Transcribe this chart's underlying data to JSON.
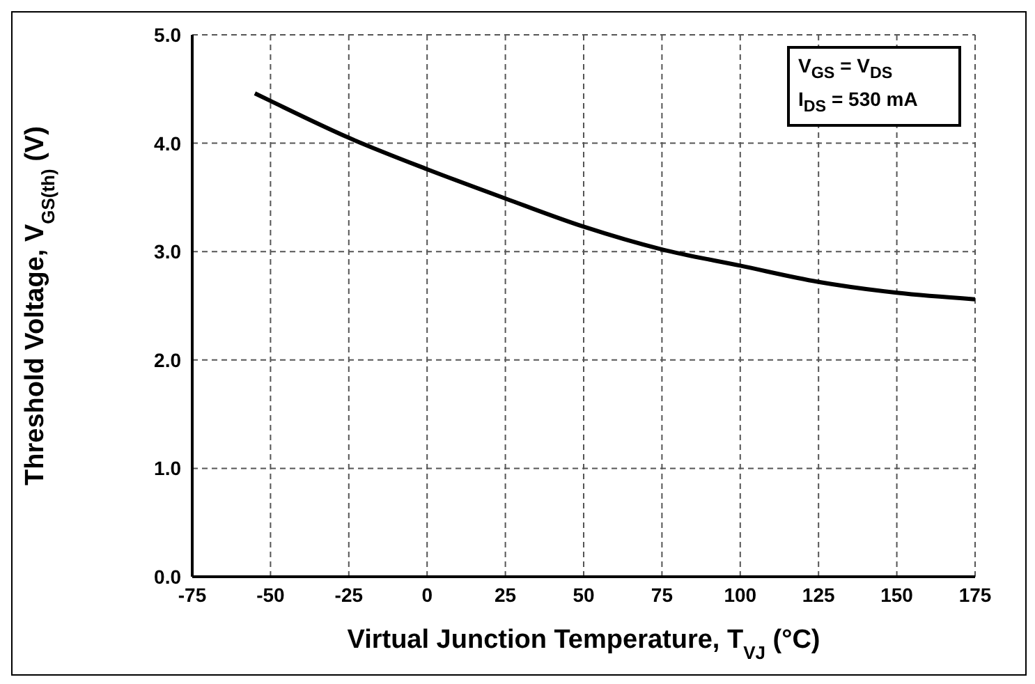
{
  "chart_data": {
    "type": "line",
    "xlabel": "Virtual Junction Temperature, T$_{VJ}$ (°C)",
    "ylabel": "Threshold Voltage, V$_{GS(th)}$ (V)",
    "x": [
      -55,
      -50,
      -25,
      0,
      25,
      50,
      75,
      100,
      125,
      150,
      175
    ],
    "series": [
      {
        "color": "#000000",
        "values": [
          4.46,
          4.39,
          4.05,
          3.76,
          3.49,
          3.23,
          3.02,
          2.87,
          2.72,
          2.62,
          2.56
        ]
      }
    ],
    "xlim": [
      -75,
      175
    ],
    "xticks": [
      -75,
      -50,
      -25,
      0,
      25,
      50,
      75,
      100,
      125,
      150,
      175
    ],
    "ylim": [
      0,
      5
    ],
    "yticks": [
      {
        "value": 0,
        "label": "0.0"
      },
      {
        "value": 1,
        "label": "1.0"
      },
      {
        "value": 2,
        "label": "2.0"
      },
      {
        "value": 3,
        "label": "3.0"
      },
      {
        "value": 4,
        "label": "4.0"
      },
      {
        "value": 5,
        "label": "5.0"
      }
    ],
    "grid": true,
    "annotations": [
      "V$_{GS}$ = V$_{DS}$",
      "I$_{DS}$ = 530 mA"
    ]
  }
}
